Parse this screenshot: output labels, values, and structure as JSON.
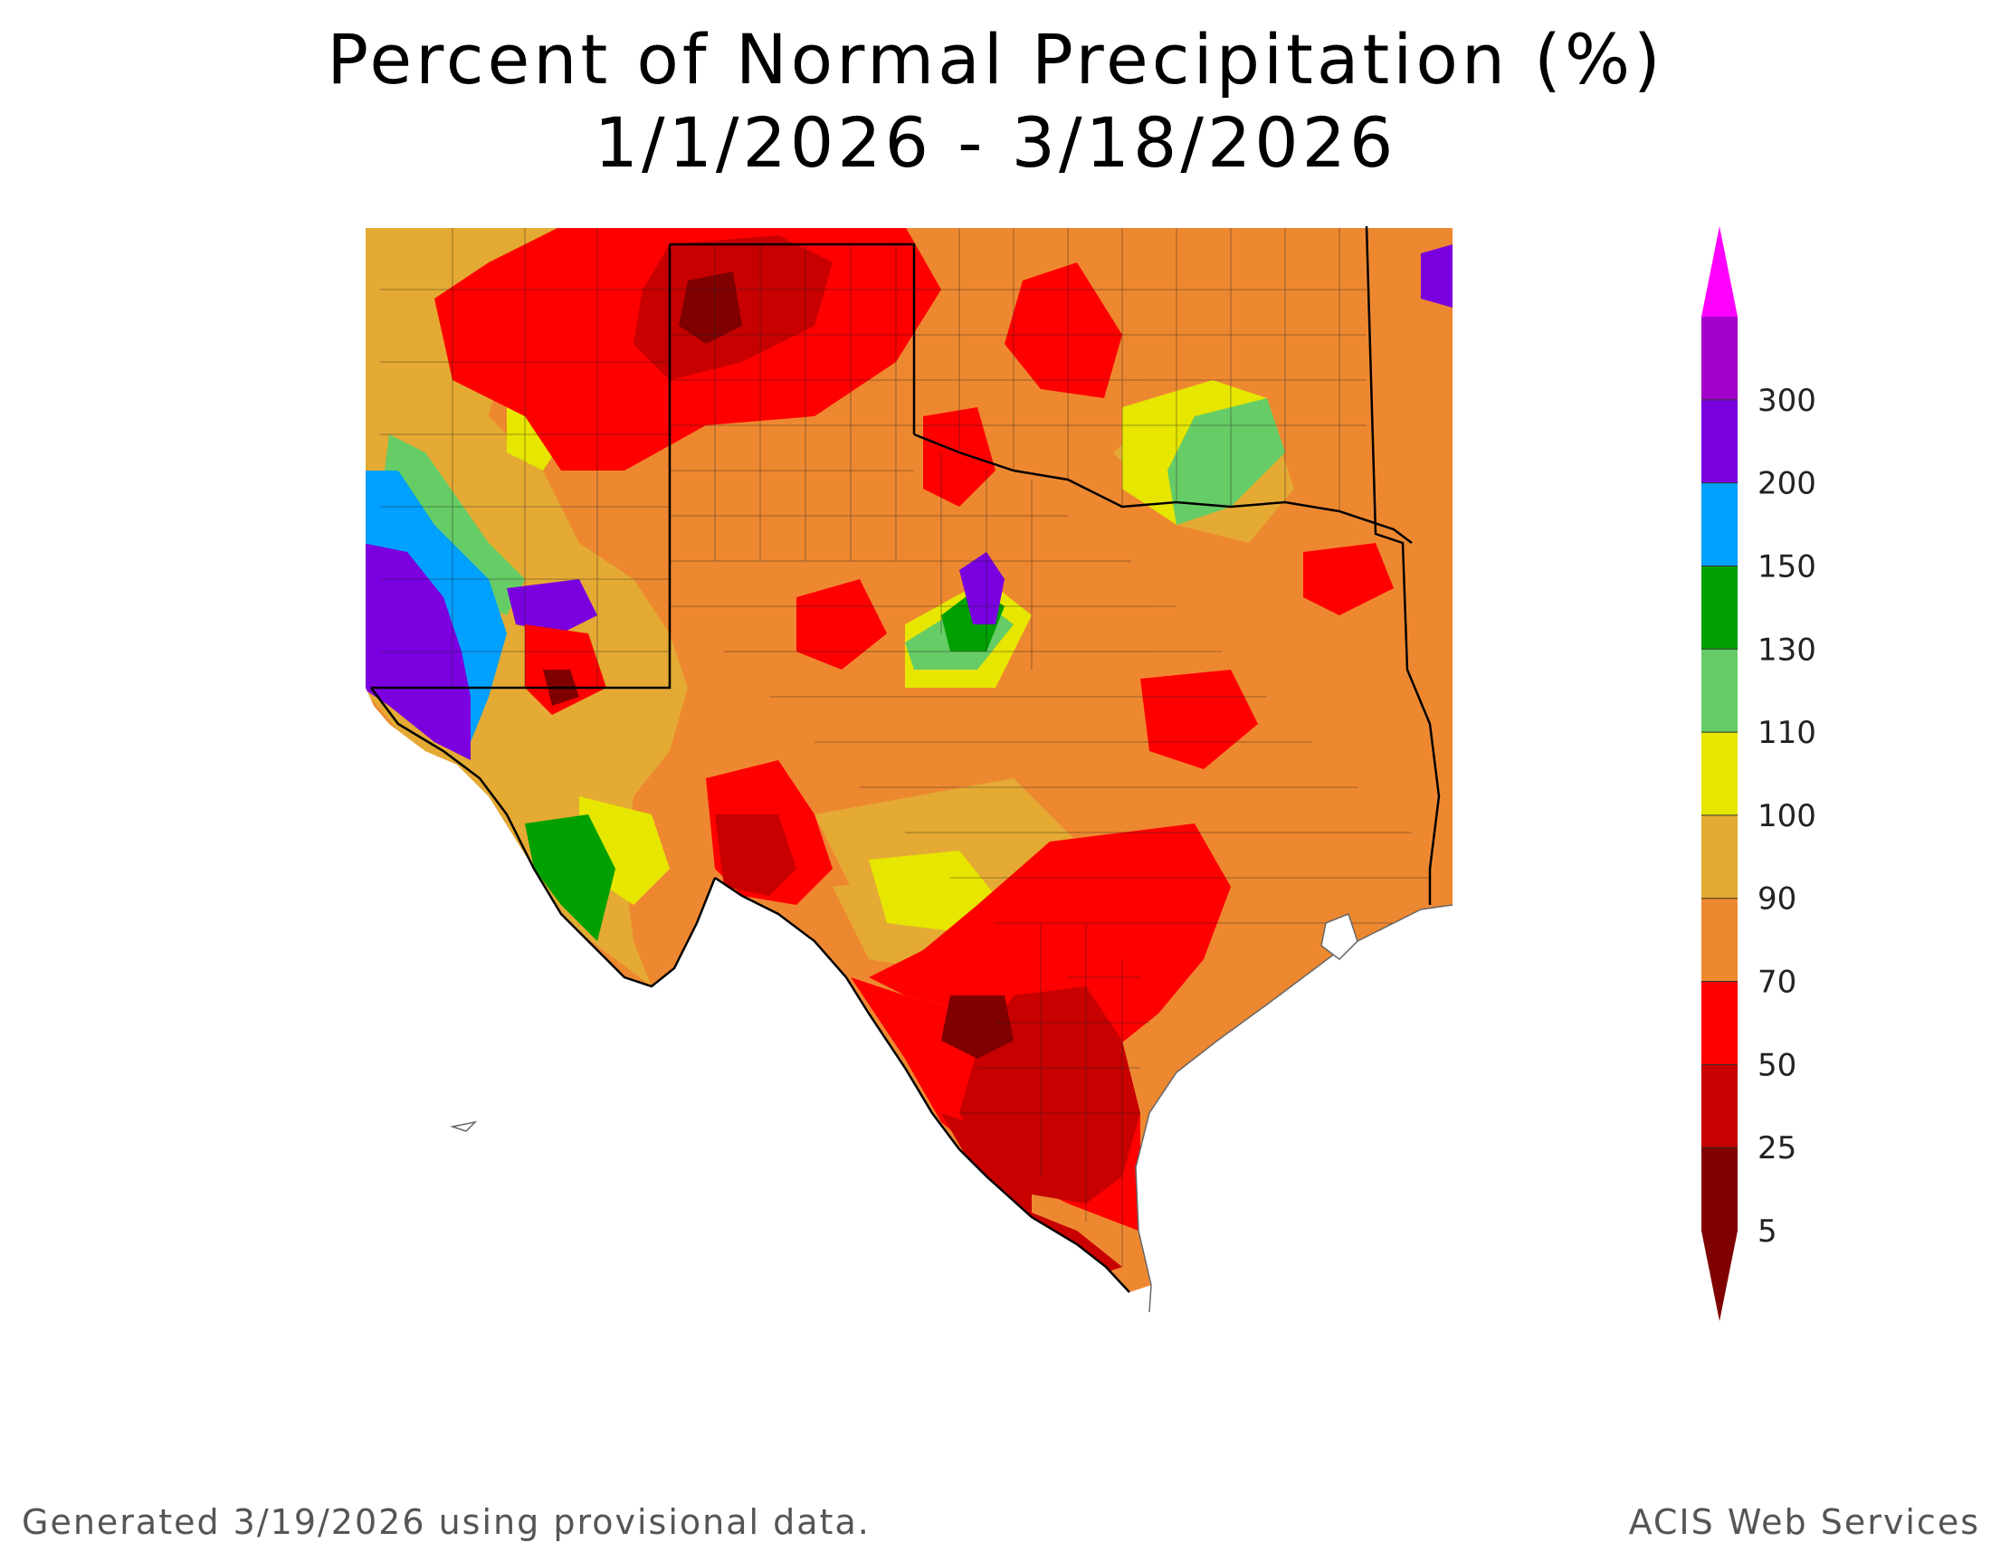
{
  "title": {
    "line1": "Percent of Normal Precipitation (%)",
    "line2": "1/1/2026 - 3/18/2026"
  },
  "footer": {
    "generated": "Generated 3/19/2026  using provisional data.",
    "source": "ACIS Web Services"
  },
  "legend": {
    "bins": [
      {
        "label": "5",
        "color": "#800000"
      },
      {
        "label": "25",
        "color": "#c80000"
      },
      {
        "label": "50",
        "color": "#ff0000"
      },
      {
        "label": "70",
        "color": "#ee8830"
      },
      {
        "label": "90",
        "color": "#e4aa33"
      },
      {
        "label": "100",
        "color": "#e6e600"
      },
      {
        "label": "110",
        "color": "#66cc66"
      },
      {
        "label": "130",
        "color": "#00a000"
      },
      {
        "label": "150",
        "color": "#00a0ff"
      },
      {
        "label": "200",
        "color": "#7a00e0"
      },
      {
        "label": "300",
        "color": "#a000c8"
      }
    ],
    "top_arrow_color": "#ff00ff",
    "bottom_arrow_color": "#800000"
  }
}
